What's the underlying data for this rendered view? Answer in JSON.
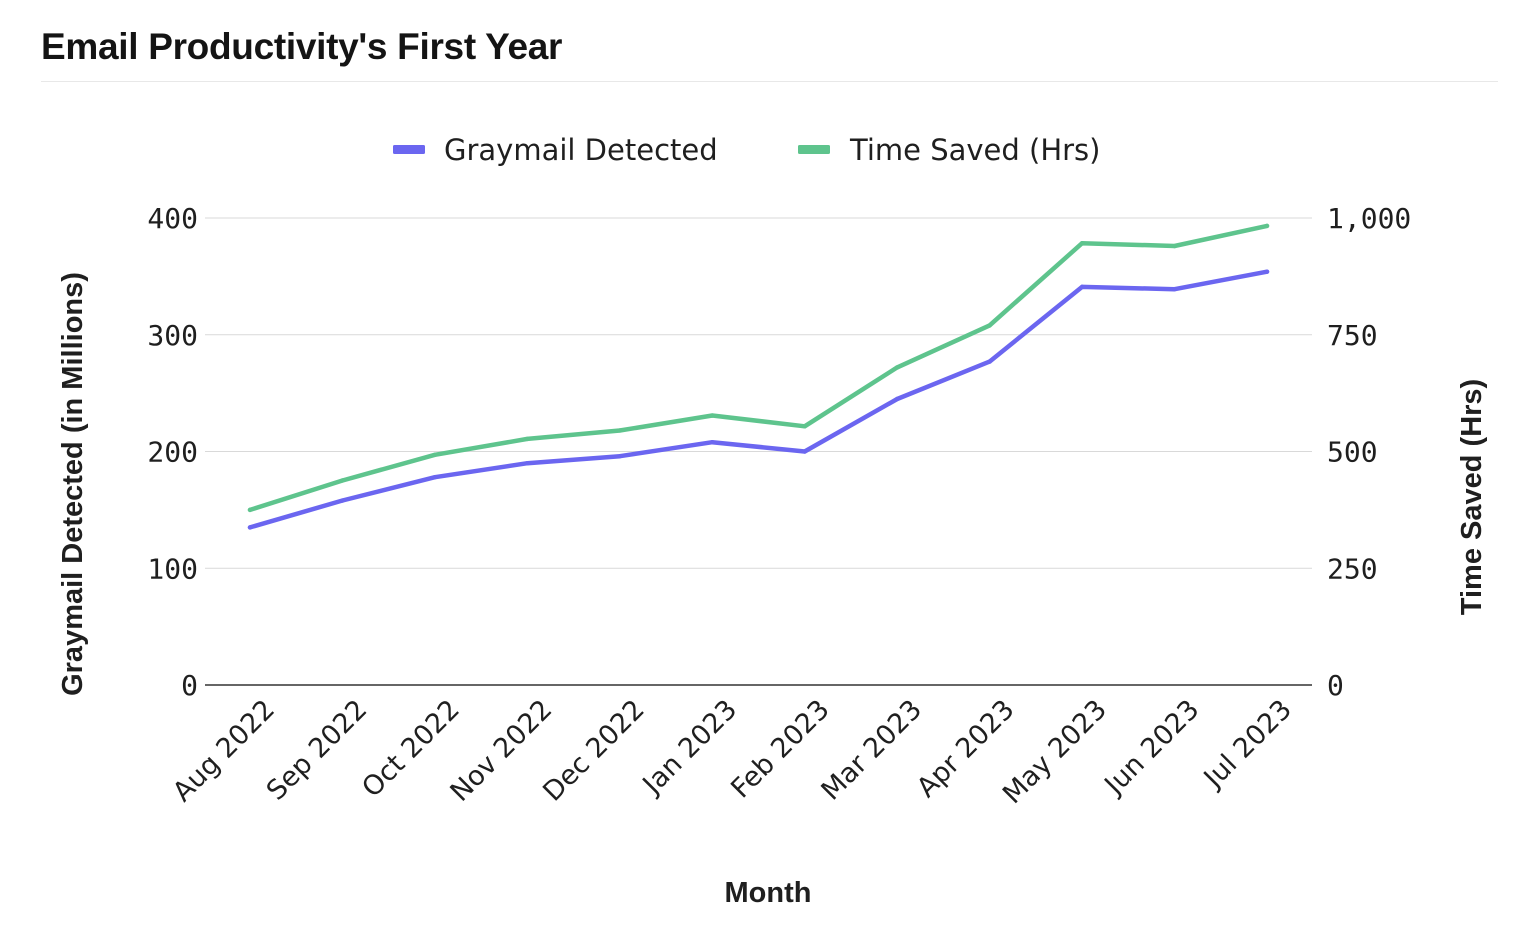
{
  "page": {
    "title": "Email Productivity's First Year"
  },
  "chart_data": {
    "type": "line",
    "title": "Email Productivity's First Year",
    "categories": [
      "Aug 2022",
      "Sep 2022",
      "Oct 2022",
      "Nov 2022",
      "Dec 2022",
      "Jan 2023",
      "Feb 2023",
      "Mar 2023",
      "Apr 2023",
      "May 2023",
      "Jun 2023",
      "Jul 2023"
    ],
    "series": [
      {
        "name": "Graymail Detected",
        "axis": "left",
        "color": "#6b66f0",
        "values": [
          135,
          158,
          178,
          190,
          196,
          208,
          200,
          245,
          277,
          341,
          339,
          354
        ]
      },
      {
        "name": "Time Saved (Hrs)",
        "axis": "right",
        "color": "#5ec48d",
        "values": [
          375,
          438,
          493,
          527,
          545,
          577,
          554,
          680,
          770,
          946,
          940,
          983
        ]
      }
    ],
    "xlabel": "Month",
    "ylabel": "Graymail Detected (in Millions)",
    "y2label": "Time Saved (Hrs)",
    "ylim": [
      0,
      400
    ],
    "y2lim": [
      0,
      1000
    ],
    "yticks": [
      "0",
      "100",
      "200",
      "300",
      "400"
    ],
    "y2ticks": [
      "0",
      "250",
      "500",
      "750",
      "1,000"
    ],
    "grid": true,
    "legend_position": "top-center"
  }
}
